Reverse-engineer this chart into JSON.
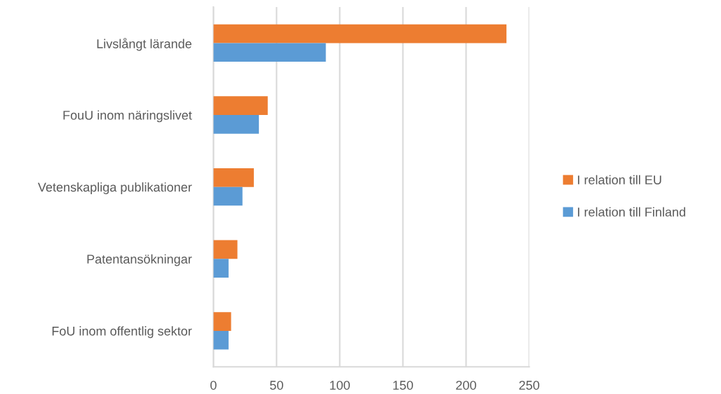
{
  "chart_data": {
    "type": "bar",
    "orientation": "horizontal",
    "categories": [
      "Livslångt lärande",
      "FouU inom näringslivet",
      "Vetenskapliga publikationer",
      "Patentansökningar",
      "FoU inom offentlig sektor"
    ],
    "series": [
      {
        "name": "I relation till EU",
        "color": "#ed7d31",
        "values": [
          232,
          43,
          32,
          19,
          14
        ]
      },
      {
        "name": "I relation till Finland",
        "color": "#5b9bd5",
        "values": [
          89,
          36,
          23,
          12,
          12
        ]
      }
    ],
    "xlim": [
      0,
      250
    ],
    "xticks": [
      0,
      50,
      100,
      150,
      200,
      250
    ],
    "grid": "x",
    "legend": "right"
  }
}
